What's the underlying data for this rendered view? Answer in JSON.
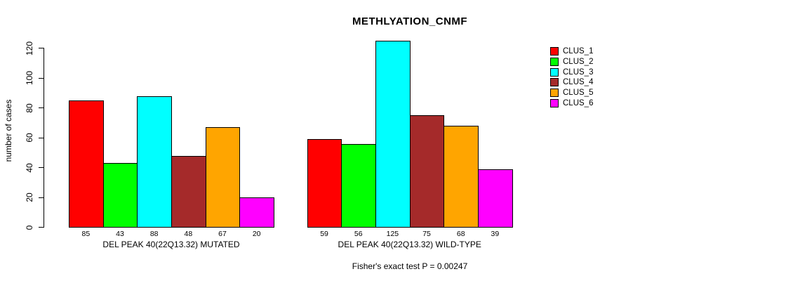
{
  "title": "METHLYATION_CNMF",
  "footer_note": "Fisher's exact test P = 0.00247",
  "chart_data": {
    "type": "bar",
    "title": "METHLYATION_CNMF",
    "xlabel": "",
    "ylabel": "number of cases",
    "ylim": [
      0,
      125
    ],
    "yticks": [
      0,
      20,
      40,
      60,
      80,
      100,
      120
    ],
    "grid": false,
    "legend_position": "top-right",
    "categories": [
      "CLUS_1",
      "CLUS_2",
      "CLUS_3",
      "CLUS_4",
      "CLUS_5",
      "CLUS_6"
    ],
    "colors": [
      "#FF0000",
      "#00FF00",
      "#00FFFF",
      "#A52A2A",
      "#FFA500",
      "#FF00FF"
    ],
    "groups": [
      {
        "label": "DEL PEAK 40(22Q13.32) MUTATED",
        "values": [
          85,
          43,
          88,
          48,
          67,
          20
        ]
      },
      {
        "label": "DEL PEAK 40(22Q13.32) WILD-TYPE",
        "values": [
          59,
          56,
          125,
          75,
          68,
          39
        ]
      }
    ],
    "annotation": "Fisher's exact test P = 0.00247"
  }
}
